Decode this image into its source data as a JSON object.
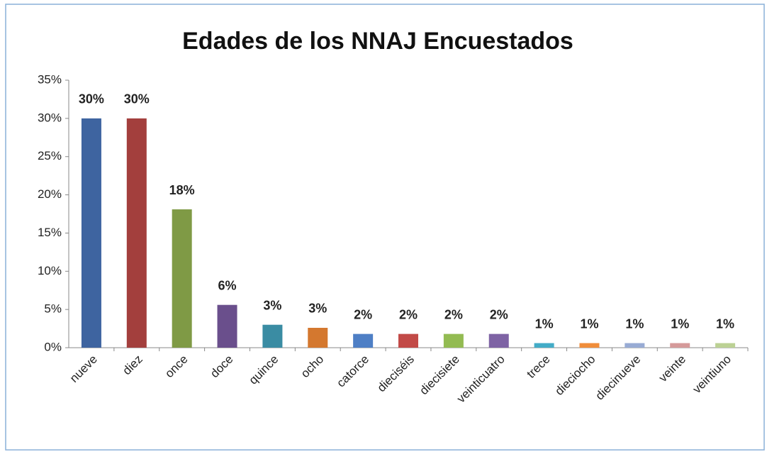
{
  "chart_data": {
    "type": "bar",
    "title": "Edades de los NNAJ Encuestados",
    "categories": [
      "nueve",
      "diez",
      "once",
      "doce",
      "quince",
      "ocho",
      "catorce",
      "dieciséis",
      "diecisiete",
      "veinticuatro",
      "trece",
      "dieciocho",
      "diecinueve",
      "veinte",
      "veintiuno"
    ],
    "values": [
      30,
      30,
      18.1,
      5.6,
      3.0,
      2.6,
      1.8,
      1.8,
      1.8,
      1.8,
      0.6,
      0.6,
      0.6,
      0.6,
      0.6
    ],
    "value_labels": [
      "30%",
      "30%",
      "18%",
      "6%",
      "3%",
      "3%",
      "2%",
      "2%",
      "2%",
      "2%",
      "1%",
      "1%",
      "1%",
      "1%",
      "1%"
    ],
    "colors": [
      "#3e64a0",
      "#a33f3d",
      "#7f9a45",
      "#6a4f8c",
      "#3a8ca3",
      "#d4782f",
      "#4e7fc5",
      "#c24a47",
      "#93bb52",
      "#7e63a4",
      "#43acc7",
      "#f08d3a",
      "#98abd4",
      "#d59a9a",
      "#bcd194"
    ],
    "ylim": [
      0,
      35
    ],
    "yticks": [
      {
        "value": 0,
        "label": "0%"
      },
      {
        "value": 5,
        "label": "5%"
      },
      {
        "value": 10,
        "label": "10%"
      },
      {
        "value": 15,
        "label": "15%"
      },
      {
        "value": 20,
        "label": "20%"
      },
      {
        "value": 25,
        "label": "25%"
      },
      {
        "value": 30,
        "label": "30%"
      },
      {
        "value": 35,
        "label": "35%"
      }
    ],
    "grid": false
  }
}
